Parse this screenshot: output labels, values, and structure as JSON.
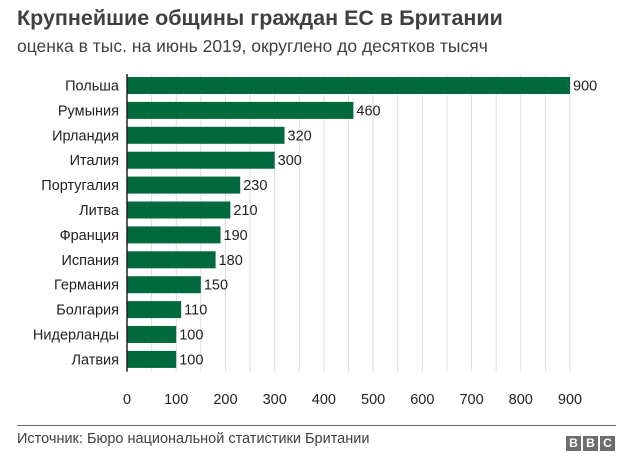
{
  "chart_data": {
    "type": "bar",
    "orientation": "horizontal",
    "title": "Крупнейшие общины граждан ЕС в Британии",
    "subtitle": "оценка в тыс. на июнь 2019, округлено до десятков тысяч",
    "categories": [
      "Польша",
      "Румыния",
      "Ирландия",
      "Италия",
      "Португалия",
      "Литва",
      "Франция",
      "Испания",
      "Германия",
      "Болгария",
      "Нидерланды",
      "Латвия"
    ],
    "values": [
      900,
      460,
      320,
      300,
      230,
      210,
      190,
      180,
      150,
      110,
      100,
      100
    ],
    "xlim": [
      0,
      900
    ],
    "xticks": [
      0,
      100,
      200,
      300,
      400,
      500,
      600,
      700,
      800,
      900
    ],
    "grid": true,
    "bar_color": "#00693e",
    "source": "Источник: Бюро национальной статистики Британии"
  },
  "logo": "BBC"
}
